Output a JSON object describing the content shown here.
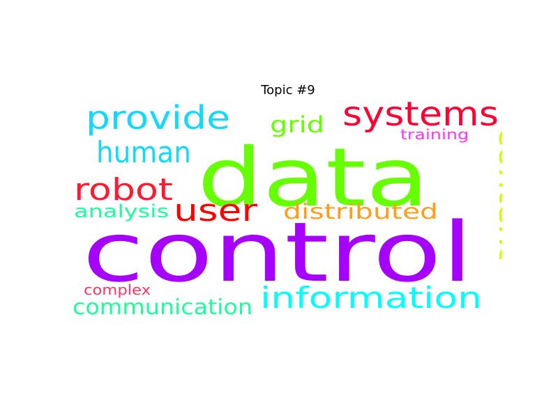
{
  "title": "Topic #9",
  "words": [
    {
      "text": "control",
      "color": "#a600ff"
    },
    {
      "text": "data",
      "color": "#66ff00"
    },
    {
      "text": "systems",
      "color": "#ff0033"
    },
    {
      "text": "provide",
      "color": "#14d9ff"
    },
    {
      "text": "human",
      "color": "#14d9ff"
    },
    {
      "text": "robot",
      "color": "#ff1a33"
    },
    {
      "text": "user",
      "color": "#ff0000"
    },
    {
      "text": "content",
      "color": "#ccff00"
    },
    {
      "text": "information",
      "color": "#00ffff"
    },
    {
      "text": "distributed",
      "color": "#ff9e1a"
    },
    {
      "text": "grid",
      "color": "#66ff00"
    },
    {
      "text": "analysis",
      "color": "#1aff99"
    },
    {
      "text": "communication",
      "color": "#1aff99"
    },
    {
      "text": "complex",
      "color": "#ff3366"
    },
    {
      "text": "training",
      "color": "#ff33ff"
    }
  ]
}
